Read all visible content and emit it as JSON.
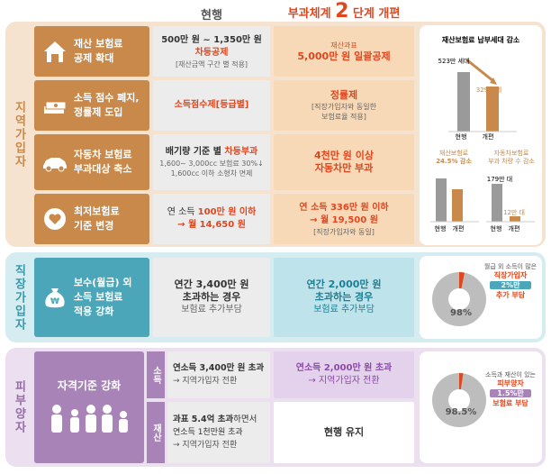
{
  "header": {
    "current": "현행",
    "reform_prefix": "부과체계",
    "reform_num": "2",
    "reform_suffix": "단계 개편"
  },
  "sections": {
    "regional": "지역가입자",
    "workplace": "직장가입자",
    "dependent": "피부양자"
  },
  "rows": [
    {
      "icon": "house-icon",
      "label_lines": [
        "재산 보험료",
        "공제 확대"
      ],
      "current": {
        "l1": "500만 원 ~ 1,350만 원",
        "l2": "차등공제",
        "l3": "[재산금액 구간 별 적용]"
      },
      "reform": {
        "l1": "재산과표",
        "l2": "5,000만 원 일괄공제"
      }
    },
    {
      "icon": "money-stack-icon",
      "label_lines": [
        "소득 점수 폐지,",
        "정률제 도입"
      ],
      "current": {
        "l1": "소득점수제[등급별]"
      },
      "reform": {
        "l1": "정률제",
        "l2": "[직장가입자와 동일한",
        "l3": "보험료율 적용]"
      }
    },
    {
      "icon": "car-icon",
      "label_lines": [
        "자동차 보험료",
        "부과대상 축소"
      ],
      "current": {
        "l1a": "배기량 기준 별 ",
        "l1b": "차등부과",
        "l2": "1,600~ 3,000cc 보험료 30%↓",
        "l3": "1,600cc 이하 소형차 면제"
      },
      "reform": {
        "l1": "4천만 원 이상",
        "l2": "자동차만 부과"
      }
    },
    {
      "icon": "heart-coin-icon",
      "label_lines": [
        "최저보험료",
        "기준 변경"
      ],
      "current": {
        "l1a": "연 소득 ",
        "l1b": "100만 원 이하",
        "l2": "→ 월 14,650 원"
      },
      "reform": {
        "l1": "연 소득 336만 원 이하",
        "l2": "→ 월 19,500 원",
        "l3": "[직장가입자와 동일]"
      }
    },
    {
      "icon": "money-bag-icon",
      "label_lines": [
        "보수(월급) 외",
        "소득 보험료",
        "적용 강화"
      ],
      "current": {
        "l1": "연간 3,400만 원",
        "l2": "초과하는 경우",
        "l3": "보험료 추가부담"
      },
      "reform": {
        "l1": "연간 2,000만 원",
        "l2": "초과하는 경우",
        "l3": "보험료 추가부담"
      }
    }
  ],
  "dependent": {
    "label": "자격기준 강화",
    "income_tag": "소득",
    "property_tag": "재산",
    "income_current_l1": "연소득 3,400만 원 초과",
    "income_current_l2": "→ 지역가입자 전환",
    "income_reform_l1": "연소득 2,000만 원 초과",
    "income_reform_l2": "→ 지역가입자 전환",
    "property_current_l1a": "과표 5.4억 초과",
    "property_current_l1b": "하면서",
    "property_current_l2": "연소득 1천만원 초과",
    "property_current_l3": "→ 지역가입자 전환",
    "property_reform": "현행 유지"
  },
  "side": {
    "regional_title": "재산보험료 납부세대 감소",
    "bar1_before": "523만 세대",
    "bar1_after": "329만 세대",
    "lbl_current": "현행",
    "lbl_reform": "개편",
    "left_title_1": "재산보험료",
    "left_title_2": "24.5% 감소",
    "right_title_1": "자동차보험료",
    "right_title_2": "부과 차량 수 감소",
    "right_before": "179만 대",
    "right_after": "12만 대",
    "work_pct": "98%",
    "work_note": "월급 외 소득이 많은",
    "work_l1": "직장가입자",
    "work_l2": "2%만",
    "work_l3": "추가 부담",
    "dep_pct": "98.5%",
    "dep_note": "소득과 재산이 있는",
    "dep_l1": "피부양자",
    "dep_l2": "1.5%만",
    "dep_l3": "보험료 부담"
  },
  "colors": {
    "regional": "#c8894a",
    "workplace": "#4aa6b8",
    "dependent": "#a783b8",
    "accent": "#e0471f"
  }
}
